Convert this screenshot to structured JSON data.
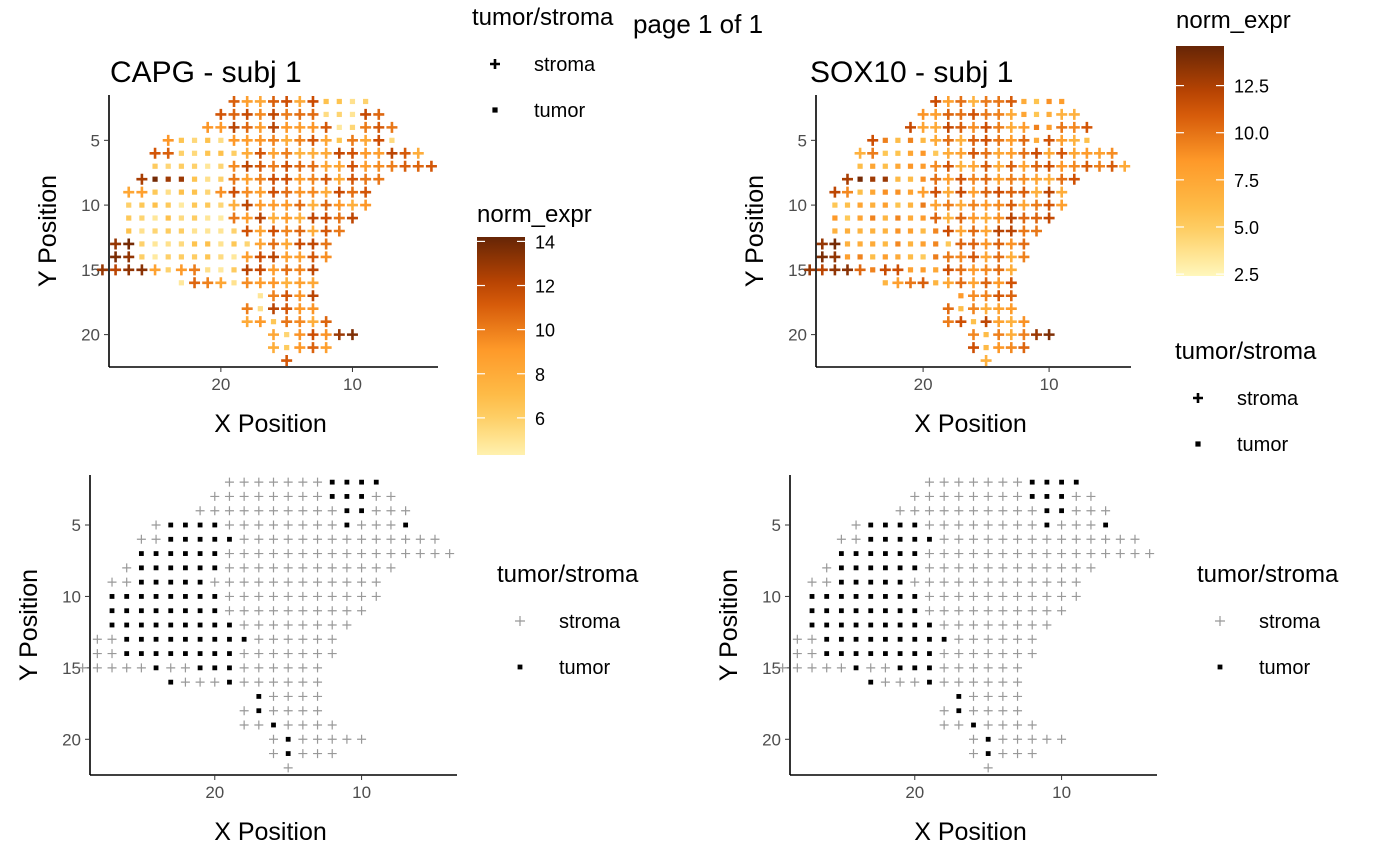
{
  "page_label": "page 1 of 1",
  "axis_labels": {
    "x": "X Position",
    "y": "Y Position"
  },
  "legend_titles": {
    "class": "tumor/stroma",
    "expr": "norm_expr"
  },
  "legend_items": {
    "stroma": "stroma",
    "tumor": "tumor"
  },
  "colors": {
    "expr_low": "#fff7bc",
    "expr_mid": "#fe9929",
    "expr_high": "#662506",
    "stroma_grey": "#999999",
    "tumor_black": "#000000"
  },
  "chart_data": [
    {
      "type": "scatter",
      "title": "CAPG - subj 1",
      "xlabel": "X Position",
      "ylabel": "Y Position",
      "x_reversed": true,
      "y_reversed": true,
      "xlim": [
        28.5,
        3.5
      ],
      "ylim": [
        1.5,
        22.5
      ],
      "x_ticks": [
        "20",
        "10"
      ],
      "y_ticks": [
        "5",
        "10",
        "15",
        "20"
      ],
      "color_scale": {
        "title": "norm_expr",
        "min": 4,
        "max": 14.2,
        "ticks": [
          "6",
          "8",
          "10",
          "12",
          "14"
        ]
      },
      "shape_legend": {
        "title": "tumor/stroma",
        "items": [
          "stroma",
          "tumor"
        ]
      },
      "legend_position": "right"
    },
    {
      "type": "scatter",
      "title": "SOX10 - subj 1",
      "xlabel": "X Position",
      "ylabel": "Y Position",
      "x_reversed": true,
      "y_reversed": true,
      "xlim": [
        28.5,
        3.5
      ],
      "ylim": [
        1.5,
        22.5
      ],
      "x_ticks": [
        "20",
        "10"
      ],
      "y_ticks": [
        "5",
        "10",
        "15",
        "20"
      ],
      "color_scale": {
        "title": "norm_expr",
        "min": 2.4,
        "max": 14.6,
        "ticks": [
          "2.5",
          "5.0",
          "7.5",
          "10.0",
          "12.5"
        ]
      },
      "shape_legend": {
        "title": "tumor/stroma",
        "items": [
          "stroma",
          "tumor"
        ]
      },
      "legend_position": "right"
    },
    {
      "type": "scatter",
      "title": "",
      "xlabel": "X Position",
      "ylabel": "Y Position",
      "x_reversed": true,
      "y_reversed": true,
      "xlim": [
        28.5,
        3.5
      ],
      "ylim": [
        1.5,
        22.5
      ],
      "x_ticks": [
        "20",
        "10"
      ],
      "y_ticks": [
        "5",
        "10",
        "15",
        "20"
      ],
      "shape_legend": {
        "title": "tumor/stroma",
        "items": [
          "stroma",
          "tumor"
        ]
      },
      "legend_position": "right"
    },
    {
      "type": "scatter",
      "title": "",
      "xlabel": "X Position",
      "ylabel": "Y Position",
      "x_reversed": true,
      "y_reversed": true,
      "xlim": [
        28.5,
        3.5
      ],
      "ylim": [
        1.5,
        22.5
      ],
      "x_ticks": [
        "20",
        "10"
      ],
      "y_ticks": [
        "5",
        "10",
        "15",
        "20"
      ],
      "shape_legend": {
        "title": "tumor/stroma",
        "items": [
          "stroma",
          "tumor"
        ]
      },
      "legend_position": "right"
    }
  ],
  "spots": {
    "description_rows": "each row: y value, x from, x to (inclusive, data units)",
    "rows": [
      [
        2,
        9,
        19
      ],
      [
        3,
        8,
        20
      ],
      [
        4,
        7,
        21
      ],
      [
        5,
        7,
        24
      ],
      [
        6,
        5,
        25
      ],
      [
        7,
        4,
        25
      ],
      [
        8,
        8,
        26
      ],
      [
        9,
        9,
        27
      ],
      [
        10,
        9,
        27
      ],
      [
        11,
        10,
        27
      ],
      [
        12,
        11,
        27
      ],
      [
        13,
        12,
        28
      ],
      [
        14,
        12,
        28
      ],
      [
        15,
        13,
        29
      ],
      [
        16,
        13,
        23
      ],
      [
        17,
        13,
        17
      ],
      [
        18,
        13,
        18
      ],
      [
        19,
        12,
        18
      ],
      [
        20,
        10,
        16
      ],
      [
        21,
        12,
        16
      ],
      [
        22,
        15,
        15
      ]
    ],
    "tumor_rows": [
      [
        2,
        9,
        12
      ],
      [
        3,
        10,
        12
      ],
      [
        4,
        10,
        11
      ],
      [
        5,
        7,
        7
      ],
      [
        5,
        11,
        11
      ],
      [
        5,
        20,
        23
      ],
      [
        6,
        19,
        23
      ],
      [
        7,
        20,
        25
      ],
      [
        8,
        20,
        25
      ],
      [
        9,
        21,
        25
      ],
      [
        10,
        20,
        27
      ],
      [
        11,
        20,
        27
      ],
      [
        12,
        19,
        27
      ],
      [
        13,
        18,
        26
      ],
      [
        14,
        19,
        26
      ],
      [
        15,
        19,
        21
      ],
      [
        15,
        24,
        24
      ],
      [
        16,
        19,
        19
      ],
      [
        16,
        23,
        23
      ],
      [
        17,
        17,
        17
      ],
      [
        18,
        17,
        17
      ],
      [
        19,
        16,
        16
      ],
      [
        20,
        15,
        15
      ],
      [
        21,
        15,
        15
      ]
    ]
  }
}
